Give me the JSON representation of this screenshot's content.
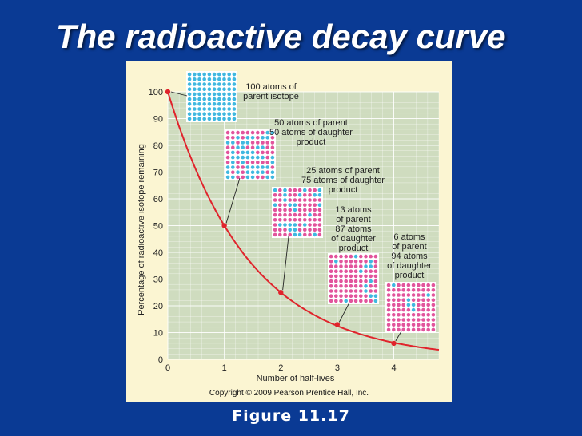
{
  "slide": {
    "title": "The radioactive decay curve",
    "caption": "Figure 11.17",
    "copyright": "Copyright © 2009 Pearson Prentice Hall, Inc."
  },
  "colors": {
    "background": "#0a3a94",
    "panel": "#fbf5d2",
    "plot_area": "#cfdcbf",
    "curve": "#e0242c",
    "parent_atom": "#3fb8e0",
    "daughter_atom": "#e2549c"
  },
  "chart_data": {
    "type": "line",
    "xlabel": "Number of half-lives",
    "ylabel": "Percentage of radioactive isotope remaining",
    "xlim": [
      0,
      4.8
    ],
    "ylim": [
      0,
      100
    ],
    "xticks": [
      0,
      1,
      2,
      3,
      4
    ],
    "yticks": [
      0,
      10,
      20,
      30,
      40,
      50,
      60,
      70,
      80,
      90,
      100
    ],
    "grid": true,
    "curve": "y = 100 * 0.5^x",
    "points": [
      {
        "x": 0,
        "y": 100,
        "parent_atoms": 100,
        "label_lines": [
          "100 atoms of",
          "parent isotope"
        ]
      },
      {
        "x": 1,
        "y": 50,
        "parent_atoms": 50,
        "label_lines": [
          "50 atoms of parent",
          "50 atoms of daughter",
          "product"
        ]
      },
      {
        "x": 2,
        "y": 25,
        "parent_atoms": 25,
        "label_lines": [
          "25 atoms of parent",
          "75 atoms of daughter",
          "product"
        ]
      },
      {
        "x": 3,
        "y": 13,
        "parent_atoms": 13,
        "label_lines": [
          "13 atoms",
          "of parent",
          "87 atoms",
          "of daughter",
          "product"
        ]
      },
      {
        "x": 4,
        "y": 6,
        "parent_atoms": 6,
        "label_lines": [
          "6 atoms",
          "of parent",
          "94 atoms",
          "of daughter",
          "product"
        ]
      }
    ]
  }
}
